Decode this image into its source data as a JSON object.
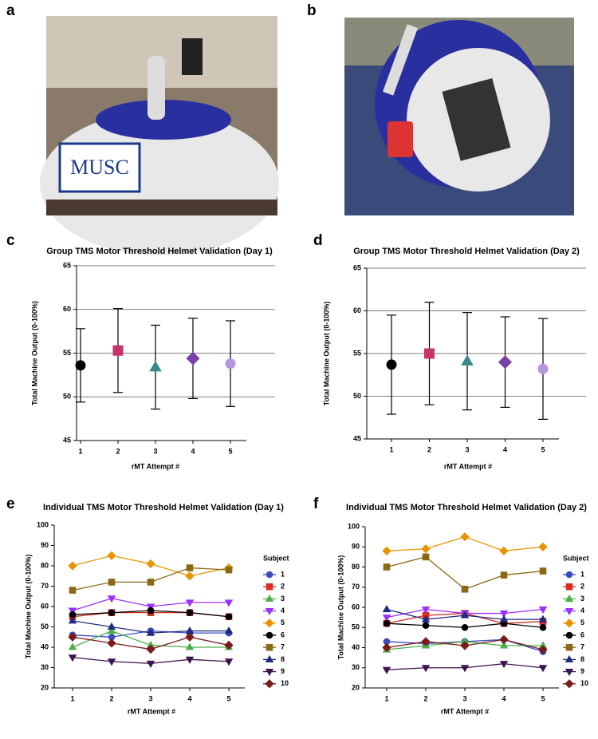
{
  "figure_labels": [
    "a",
    "b"
  ],
  "chart_data": [
    {
      "type": "errorbar",
      "label": "c",
      "title": "Group TMS Motor Threshold Helmet Validation (Day 1)",
      "x_label": "rMT Attempt #",
      "y_label": "Total Machine Output (0-100%)",
      "categories": [
        "1",
        "2",
        "3",
        "4",
        "5"
      ],
      "values": [
        53.6,
        55.3,
        53.4,
        54.4,
        53.8
      ],
      "errors": [
        4.2,
        4.8,
        4.8,
        4.6,
        4.9
      ],
      "colors": [
        "#000000",
        "#c8336a",
        "#3a8a8a",
        "#7b3fa8",
        "#b895e0"
      ],
      "markers": [
        "circle",
        "square",
        "triangle",
        "diamond",
        "circle"
      ],
      "ylim": [
        45,
        65
      ],
      "yticks": [
        45,
        50,
        55,
        60,
        65
      ],
      "grid": true
    },
    {
      "type": "errorbar",
      "label": "d",
      "title": "Group TMS Motor Threshold Helmet Validation (Day 2)",
      "x_label": "rMT Attempt #",
      "y_label": "Total Machine Output (0-100%)",
      "categories": [
        "1",
        "2",
        "3",
        "4",
        "5"
      ],
      "values": [
        53.7,
        55.0,
        54.1,
        54.0,
        53.2
      ],
      "errors": [
        5.8,
        6.0,
        5.7,
        5.3,
        5.9
      ],
      "colors": [
        "#000000",
        "#c8336a",
        "#3a8a8a",
        "#7b3fa8",
        "#b895e0"
      ],
      "markers": [
        "circle",
        "square",
        "triangle",
        "diamond",
        "circle"
      ],
      "ylim": [
        45,
        65
      ],
      "yticks": [
        45,
        50,
        55,
        60,
        65
      ],
      "grid": true
    },
    {
      "type": "line",
      "label": "e",
      "title": "Individual TMS Motor Threshold Helmet Validation (Day 1)",
      "x_label": "rMT Attempt #",
      "y_label": "Total Machine Output (0-100%)",
      "legend_title": "Subject",
      "categories": [
        "1",
        "2",
        "3",
        "4",
        "5"
      ],
      "ylim": [
        20,
        100
      ],
      "yticks": [
        20,
        30,
        40,
        50,
        60,
        70,
        80,
        90,
        100
      ],
      "grid": false,
      "series": [
        {
          "name": "1",
          "color": "#3b4cc0",
          "marker": "circle",
          "values": [
            46,
            45,
            48,
            47,
            47
          ]
        },
        {
          "name": "2",
          "color": "#d62d20",
          "marker": "square",
          "values": [
            55,
            57,
            57,
            57,
            55
          ]
        },
        {
          "name": "3",
          "color": "#4daf4a",
          "marker": "triangle",
          "values": [
            40,
            48,
            41,
            40,
            40
          ]
        },
        {
          "name": "4",
          "color": "#9b30ff",
          "marker": "triangle-down",
          "values": [
            58,
            64,
            60,
            62,
            62
          ]
        },
        {
          "name": "5",
          "color": "#e69500",
          "marker": "diamond",
          "values": [
            80,
            85,
            81,
            75,
            79
          ]
        },
        {
          "name": "6",
          "color": "#000000",
          "marker": "circle",
          "values": [
            56,
            57,
            58,
            57,
            55
          ]
        },
        {
          "name": "7",
          "color": "#8b6914",
          "marker": "square",
          "values": [
            68,
            72,
            72,
            79,
            78
          ]
        },
        {
          "name": "8",
          "color": "#1f2a80",
          "marker": "triangle",
          "values": [
            53,
            50,
            47,
            48,
            48
          ]
        },
        {
          "name": "9",
          "color": "#3d1450",
          "marker": "triangle-down",
          "values": [
            35,
            33,
            32,
            34,
            33
          ]
        },
        {
          "name": "10",
          "color": "#7a1a1a",
          "marker": "diamond",
          "values": [
            45,
            42,
            39,
            45,
            41
          ]
        }
      ]
    },
    {
      "type": "line",
      "label": "f",
      "title": "Individual TMS Motor Threshold Helmet Validation (Day 2)",
      "x_label": "rMT Attempt #",
      "y_label": "Total Machine Output (0-100%)",
      "legend_title": "Subject",
      "categories": [
        "1",
        "2",
        "3",
        "4",
        "5"
      ],
      "ylim": [
        20,
        100
      ],
      "yticks": [
        20,
        30,
        40,
        50,
        60,
        70,
        80,
        90,
        100
      ],
      "grid": false,
      "series": [
        {
          "name": "1",
          "color": "#3b4cc0",
          "marker": "circle",
          "values": [
            43,
            42,
            43,
            44,
            38
          ]
        },
        {
          "name": "2",
          "color": "#d62d20",
          "marker": "square",
          "values": [
            52,
            56,
            57,
            52,
            53
          ]
        },
        {
          "name": "3",
          "color": "#4daf4a",
          "marker": "triangle",
          "values": [
            39,
            41,
            43,
            41,
            41
          ]
        },
        {
          "name": "4",
          "color": "#9b30ff",
          "marker": "triangle-down",
          "values": [
            55,
            59,
            57,
            57,
            59
          ]
        },
        {
          "name": "5",
          "color": "#e69500",
          "marker": "diamond",
          "values": [
            88,
            89,
            95,
            88,
            90
          ]
        },
        {
          "name": "6",
          "color": "#000000",
          "marker": "circle",
          "values": [
            52,
            51,
            50,
            52,
            50
          ]
        },
        {
          "name": "7",
          "color": "#8b6914",
          "marker": "square",
          "values": [
            80,
            85,
            69,
            76,
            78
          ]
        },
        {
          "name": "8",
          "color": "#1f2a80",
          "marker": "triangle",
          "values": [
            59,
            54,
            56,
            54,
            54
          ]
        },
        {
          "name": "9",
          "color": "#3d1450",
          "marker": "triangle-down",
          "values": [
            29,
            30,
            30,
            32,
            30
          ]
        },
        {
          "name": "10",
          "color": "#7a1a1a",
          "marker": "diamond",
          "values": [
            40,
            43,
            41,
            44,
            39
          ]
        }
      ]
    }
  ]
}
